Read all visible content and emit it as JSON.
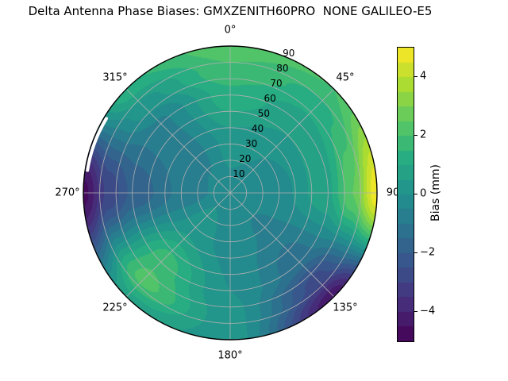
{
  "title": "Delta Antenna Phase Biases: GMXZENITH60PRO  NONE GALILEO-E5",
  "colorbar": {
    "label": "Bias (mm)",
    "ticks": [
      {
        "value": 4,
        "label": "4"
      },
      {
        "value": 2,
        "label": "2"
      },
      {
        "value": 0,
        "label": "0"
      },
      {
        "value": -2,
        "label": "−2"
      },
      {
        "value": -4,
        "label": "−4"
      }
    ],
    "vmin": -5,
    "vmax": 5
  },
  "polar": {
    "angle_labels": [
      {
        "angle": 0,
        "label": "0°"
      },
      {
        "angle": 45,
        "label": "45°"
      },
      {
        "angle": 90,
        "label": "90"
      },
      {
        "angle": 135,
        "label": "135°"
      },
      {
        "angle": 180,
        "label": "180°"
      },
      {
        "angle": 225,
        "label": "225°"
      },
      {
        "angle": 270,
        "label": "270°"
      },
      {
        "angle": 315,
        "label": "315°"
      }
    ],
    "radial_ticks": [
      {
        "value": 10,
        "label": "10"
      },
      {
        "value": 20,
        "label": "20"
      },
      {
        "value": 30,
        "label": "30"
      },
      {
        "value": 40,
        "label": "40"
      },
      {
        "value": 50,
        "label": "50"
      },
      {
        "value": 60,
        "label": "60"
      },
      {
        "value": 70,
        "label": "70"
      },
      {
        "value": 80,
        "label": "80"
      },
      {
        "value": 90,
        "label": "90"
      }
    ]
  },
  "chart_data": {
    "type": "heatmap",
    "subtype": "polar_filled_contour",
    "title": "Delta Antenna Phase Biases: GMXZENITH60PRO  NONE GALILEO-E5",
    "colorbar_label": "Bias (mm)",
    "colormap": "viridis",
    "vmin": -5,
    "vmax": 5,
    "levels_step_mm": 0.5,
    "azimuth_deg": [
      0,
      45,
      90,
      135,
      180,
      225,
      270,
      315
    ],
    "zenith_deg": [
      0,
      30,
      60,
      75,
      90
    ],
    "values_mm": [
      [
        -0.2,
        -0.2,
        -0.2,
        -0.2,
        -0.2,
        -0.2,
        -0.2,
        -0.2
      ],
      [
        0.2,
        0.0,
        -0.2,
        -0.6,
        -0.2,
        0.3,
        -0.9,
        -0.7
      ],
      [
        1.3,
        0.7,
        0.9,
        -1.3,
        0.0,
        1.8,
        -1.9,
        -0.6
      ],
      [
        1.9,
        1.3,
        2.5,
        -2.7,
        0.2,
        2.2,
        -2.9,
        0.3
      ],
      [
        2.3,
        2.0,
        4.9,
        -4.4,
        0.3,
        0.8,
        -4.7,
        1.4
      ]
    ],
    "azimuth_tick_labels": [
      "0°",
      "45°",
      "90",
      "135°",
      "180°",
      "225°",
      "270°",
      "315°"
    ],
    "zenith_tick_labels": [
      "10",
      "20",
      "30",
      "40",
      "50",
      "60",
      "70",
      "80",
      "90"
    ],
    "colorbar_tick_values": [
      4,
      2,
      0,
      -2,
      -4
    ]
  }
}
